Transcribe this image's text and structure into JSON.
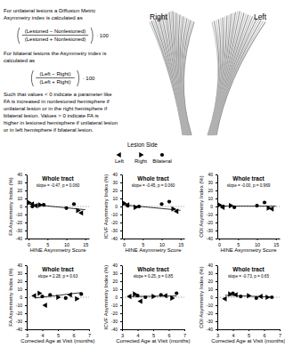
{
  "text_panel": {
    "unilateral_intro": [
      "For   unilateral lesions a Diffusion Metric",
      "Asymmetry index is calculated as"
    ],
    "unilateral_formula": {
      "numerator": "(Lesioned − Nonlesioned)",
      "denominator": "(Lesioned + Nonlesioned)",
      "factor": "· 100"
    },
    "bilateral_intro": [
      "For   bilateral lesions the Asymmetry index is",
      "calculated as"
    ],
    "bilateral_formula": {
      "numerator": "(Left − Right)",
      "denominator": "(Left + Right)",
      "factor": "· 100"
    },
    "explanation": [
      "Such that values < 0 indicate a parameter like",
      "FA is increased in nonlesioned hemisphere if",
      "unilateral lesion or in the right hemisphere if",
      "bilateral lesion. Values > 0 indicate FA is",
      "higher in lesioned hemisphere if unilateral lesion",
      "or in left hemisphere if bilateral lesion."
    ]
  },
  "tract_labels": {
    "right": "Right",
    "left": "Left"
  },
  "legend_title": "Lesion Side",
  "chart_data": [
    {
      "type": "scatter",
      "title": "Whole tract",
      "annotation": "slope = -0.47, p = 0.060",
      "x_label": "HINE Asymmetry Score",
      "y_label": "FA Asymmetry Index (%)",
      "color": "#000000",
      "legend": "top",
      "xlim": [
        -0.5,
        16
      ],
      "xticks": [
        0,
        5,
        10,
        15
      ],
      "ylim": [
        -40,
        40
      ],
      "yticks": [
        40,
        30,
        20,
        10,
        0,
        -10,
        -20,
        -30,
        -40
      ],
      "series": [
        {
          "name": "Left",
          "marker": "triangle-left",
          "x": [
            1,
            2,
            14
          ],
          "values": [
            3,
            1,
            -8
          ]
        },
        {
          "name": "Right",
          "marker": "triangle-right",
          "x": [
            0,
            3,
            13
          ],
          "values": [
            5,
            2,
            -5
          ]
        },
        {
          "name": "Bilateral",
          "marker": "circle",
          "x": [
            1,
            4,
            10,
            12
          ],
          "values": [
            0,
            2,
            -2,
            3
          ]
        },
        {
          "type": "line",
          "line_style": "solid",
          "x": [
            0,
            15
          ],
          "values": [
            3,
            -4
          ]
        }
      ]
    },
    {
      "type": "scatter",
      "title": "Whole tract",
      "annotation": "slope = -0.45, p = 0.060",
      "x_label": "HINE Asymmetry Score",
      "y_label": "ICVF Asymmetry Index (%)",
      "color": "#000000",
      "xlim": [
        -0.5,
        16
      ],
      "xticks": [
        0,
        5,
        10,
        15
      ],
      "ylim": [
        -40,
        40
      ],
      "yticks": [
        40,
        30,
        20,
        10,
        0,
        -10,
        -20,
        -30,
        -40
      ],
      "series": [
        {
          "marker": "triangle-left",
          "x": [
            1,
            14
          ],
          "values": [
            2,
            -6
          ]
        },
        {
          "marker": "triangle-right",
          "x": [
            0,
            3,
            13
          ],
          "values": [
            4,
            -1,
            -3
          ]
        },
        {
          "marker": "circle",
          "x": [
            1,
            4,
            10,
            12
          ],
          "values": [
            1,
            0,
            3,
            6
          ]
        },
        {
          "type": "line",
          "line_style": "solid",
          "x": [
            0,
            15
          ],
          "values": [
            2,
            -4.8
          ]
        }
      ]
    },
    {
      "type": "scatter",
      "title": "Whole tract",
      "annotation": "slope = -0.00, p = 0.969",
      "x_label": "HINE Asymmetry Score",
      "y_label": "ODI Asymmetry Index (%)",
      "color": "#000000",
      "xlim": [
        -0.5,
        16
      ],
      "xticks": [
        0,
        5,
        10,
        15
      ],
      "ylim": [
        -40,
        40
      ],
      "yticks": [
        40,
        30,
        20,
        10,
        0,
        -10,
        -20,
        -30,
        -40
      ],
      "series": [
        {
          "marker": "triangle-left",
          "x": [
            1,
            14
          ],
          "values": [
            -1,
            -3
          ]
        },
        {
          "marker": "triangle-right",
          "x": [
            0,
            3,
            13
          ],
          "values": [
            2,
            1,
            -2
          ]
        },
        {
          "marker": "circle",
          "x": [
            1,
            4,
            10,
            12
          ],
          "values": [
            0,
            -1,
            1,
            5
          ]
        },
        {
          "type": "line",
          "line_style": "solid",
          "x": [
            0,
            15
          ],
          "values": [
            0.5,
            0.4
          ]
        }
      ]
    },
    {
      "type": "scatter",
      "title": "Whole tract",
      "annotation": "slope = 2.28, p = 0.63",
      "x_label": "Corrected Age at Visit (months)",
      "y_label": "FA Asymmetry Index (%)",
      "color": "#000000",
      "xlim": [
        3,
        7
      ],
      "xticks": [
        3,
        4,
        5,
        6,
        7
      ],
      "ylim": [
        -40,
        40
      ],
      "yticks": [
        40,
        30,
        20,
        10,
        0,
        -10,
        -20,
        -30,
        -40
      ],
      "series": [
        {
          "marker": "triangle-left",
          "x": [
            3.5,
            4.2,
            5.8
          ],
          "values": [
            2,
            -10,
            3
          ]
        },
        {
          "marker": "triangle-right",
          "x": [
            3.8,
            5,
            6.2
          ],
          "values": [
            5,
            0,
            -2
          ]
        },
        {
          "marker": "circle",
          "x": [
            4,
            4.5,
            5.5,
            6.5
          ],
          "values": [
            1,
            3,
            -1,
            4
          ]
        },
        {
          "type": "line",
          "line_style": "solid",
          "x": [
            3.5,
            6.5
          ],
          "values": [
            -1,
            5.8
          ]
        }
      ]
    },
    {
      "type": "scatter",
      "title": "Whole tract",
      "annotation": "slope = 0.25, p = 0.85",
      "x_label": "Corrected Age at Visit (months)",
      "y_label": "ICVF Asymmetry Index (%)",
      "color": "#000000",
      "xlim": [
        3,
        7
      ],
      "xticks": [
        3,
        4,
        5,
        6,
        7
      ],
      "ylim": [
        -40,
        40
      ],
      "yticks": [
        40,
        30,
        20,
        10,
        0,
        -10,
        -20,
        -30,
        -40
      ],
      "series": [
        {
          "marker": "triangle-left",
          "x": [
            3.5,
            4.2,
            5.8
          ],
          "values": [
            1,
            -5,
            2
          ]
        },
        {
          "marker": "triangle-right",
          "x": [
            3.8,
            5,
            6.2
          ],
          "values": [
            4,
            1,
            -1
          ]
        },
        {
          "marker": "circle",
          "x": [
            4,
            4.5,
            5.5,
            6.5
          ],
          "values": [
            2,
            0,
            3,
            5
          ]
        },
        {
          "type": "line",
          "line_style": "solid",
          "x": [
            3.5,
            6.5
          ],
          "values": [
            0.9,
            1.7
          ]
        }
      ]
    },
    {
      "type": "scatter",
      "title": "Whole tract",
      "annotation": "slope = -0.73, p = 0.65",
      "x_label": "Corrected Age at Visit (months)",
      "y_label": "ODI Asymmetry Index (%)",
      "color": "#000000",
      "xlim": [
        3,
        7
      ],
      "xticks": [
        3,
        4,
        5,
        6,
        7
      ],
      "ylim": [
        -40,
        40
      ],
      "yticks": [
        40,
        30,
        20,
        10,
        0,
        -10,
        -20,
        -30,
        -40
      ],
      "series": [
        {
          "marker": "triangle-left",
          "x": [
            3.5,
            4.2,
            5.8
          ],
          "values": [
            -2,
            3,
            1
          ]
        },
        {
          "marker": "triangle-right",
          "x": [
            3.8,
            5,
            6.2
          ],
          "values": [
            4,
            2,
            0
          ]
        },
        {
          "marker": "circle",
          "x": [
            4,
            4.5,
            5.5,
            6.5
          ],
          "values": [
            5,
            1,
            -1,
            0
          ]
        },
        {
          "type": "line",
          "line_style": "solid",
          "x": [
            3.5,
            6.5
          ],
          "values": [
            2.5,
            0.3
          ]
        }
      ]
    }
  ]
}
